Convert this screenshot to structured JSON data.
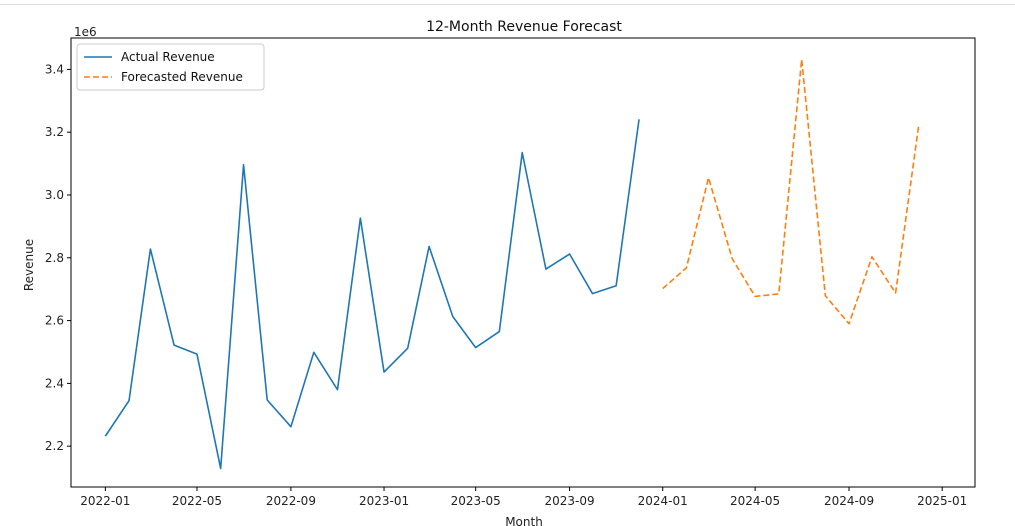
{
  "chart_data": {
    "type": "line",
    "title": "12-Month Revenue Forecast",
    "xlabel": "Month",
    "ylabel": "Revenue",
    "y_offset_label": "1e6",
    "x_tick_labels": [
      "2022-01",
      "2022-05",
      "2022-09",
      "2023-01",
      "2023-05",
      "2023-09",
      "2024-01",
      "2024-05",
      "2024-09",
      "2025-01"
    ],
    "y_tick_labels": [
      "2.2",
      "2.4",
      "2.6",
      "2.8",
      "3.0",
      "3.2",
      "3.4"
    ],
    "x_range": [
      "2021-11-17",
      "2025-02-13"
    ],
    "y_range": [
      2.07,
      3.5
    ],
    "legend_position": "upper left",
    "grid": false,
    "series": [
      {
        "name": "Actual Revenue",
        "color": "#1f77b4",
        "style": "solid",
        "x": [
          "2022-01",
          "2022-02",
          "2022-03",
          "2022-04",
          "2022-05",
          "2022-06",
          "2022-07",
          "2022-08",
          "2022-09",
          "2022-10",
          "2022-11",
          "2022-12",
          "2023-01",
          "2023-02",
          "2023-03",
          "2023-04",
          "2023-05",
          "2023-06",
          "2023-07",
          "2023-08",
          "2023-09",
          "2023-10",
          "2023-11",
          "2023-12"
        ],
        "values": [
          2.232,
          2.345,
          2.828,
          2.522,
          2.493,
          2.129,
          3.096,
          2.347,
          2.262,
          2.499,
          2.38,
          2.926,
          2.436,
          2.512,
          2.836,
          2.613,
          2.514,
          2.565,
          3.135,
          2.764,
          2.812,
          2.686,
          2.711,
          3.241
        ]
      },
      {
        "name": "Forecasted Revenue",
        "color": "#ff7f0e",
        "style": "dashed",
        "x": [
          "2024-01",
          "2024-02",
          "2024-03",
          "2024-04",
          "2024-05",
          "2024-06",
          "2024-07",
          "2024-08",
          "2024-09",
          "2024-10",
          "2024-11",
          "2024-12"
        ],
        "values": [
          2.702,
          2.768,
          3.055,
          2.797,
          2.677,
          2.685,
          3.432,
          2.679,
          2.59,
          2.803,
          2.688,
          3.217
        ]
      }
    ]
  }
}
